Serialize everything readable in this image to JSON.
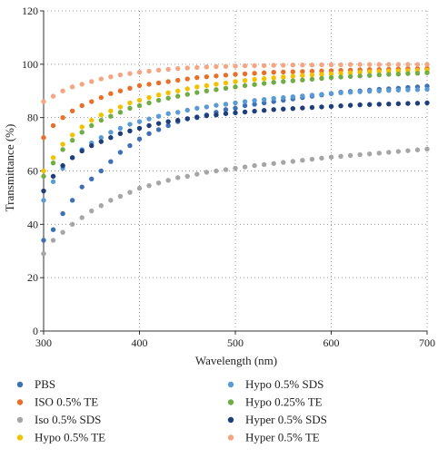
{
  "chart_data": {
    "type": "scatter",
    "title": "",
    "xlabel": "Wavelength (nm)",
    "ylabel": "Transmittance (%)",
    "xlim": [
      300,
      700
    ],
    "ylim": [
      0,
      120
    ],
    "xticks": [
      300,
      400,
      500,
      600,
      700
    ],
    "yticks": [
      0,
      20,
      40,
      60,
      80,
      100,
      120
    ],
    "grid": true,
    "legend_placement": "bottom",
    "x": [
      300,
      310,
      320,
      330,
      340,
      350,
      360,
      370,
      380,
      390,
      400,
      410,
      420,
      430,
      440,
      450,
      460,
      470,
      480,
      490,
      500,
      510,
      520,
      530,
      540,
      550,
      560,
      570,
      580,
      590,
      600,
      610,
      620,
      630,
      640,
      650,
      660,
      670,
      680,
      690,
      700
    ],
    "series": [
      {
        "name": "PBS",
        "color": "#3f6fb5",
        "values": [
          34.0,
          38.0,
          44.0,
          49.0,
          54.0,
          57.0,
          60.0,
          63.5,
          67.0,
          69.5,
          72.0,
          74.0,
          75.5,
          77.0,
          78.5,
          79.5,
          80.0,
          81.0,
          82.0,
          83.0,
          83.5,
          84.5,
          85.0,
          85.5,
          86.0,
          86.5,
          87.0,
          87.5,
          88.0,
          88.5,
          89.0,
          89.5,
          89.8,
          90.0,
          90.3,
          90.6,
          90.8,
          91.0,
          91.3,
          91.5,
          91.8
        ]
      },
      {
        "name": "ISO 0.5% TE",
        "color": "#e8702a",
        "values": [
          72.5,
          77.0,
          80.0,
          82.5,
          84.5,
          86.0,
          87.5,
          89.0,
          90.0,
          91.0,
          92.0,
          92.5,
          93.0,
          93.5,
          94.0,
          94.5,
          95.0,
          95.3,
          95.6,
          95.9,
          96.2,
          96.4,
          96.6,
          96.8,
          97.0,
          97.1,
          97.2,
          97.3,
          97.4,
          97.5,
          97.6,
          97.7,
          97.8,
          97.9,
          98.0,
          98.0,
          98.1,
          98.2,
          98.3,
          98.3,
          98.4
        ]
      },
      {
        "name": "Iso 0.5% SDS",
        "color": "#a6a6a6",
        "values": [
          29.0,
          34.0,
          37.0,
          40.0,
          42.5,
          45.0,
          47.0,
          49.0,
          50.5,
          52.0,
          53.5,
          54.5,
          55.5,
          56.5,
          57.5,
          58.0,
          58.8,
          59.5,
          60.0,
          60.5,
          61.0,
          61.5,
          62.0,
          62.4,
          62.8,
          63.2,
          63.6,
          64.0,
          64.4,
          64.8,
          65.2,
          65.5,
          65.8,
          66.1,
          66.4,
          66.7,
          67.0,
          67.3,
          67.6,
          67.9,
          68.2
        ]
      },
      {
        "name": "Hypo 0.5% TE",
        "color": "#f2c200",
        "values": [
          60.0,
          65.0,
          70.0,
          73.5,
          76.5,
          79.0,
          81.0,
          82.5,
          84.0,
          85.5,
          86.5,
          87.5,
          88.5,
          89.3,
          90.0,
          90.8,
          91.5,
          92.0,
          92.5,
          93.0,
          93.5,
          93.9,
          94.3,
          94.6,
          94.9,
          95.2,
          95.5,
          95.8,
          96.0,
          96.2,
          96.4,
          96.6,
          96.8,
          97.0,
          97.2,
          97.3,
          97.4,
          97.5,
          97.6,
          97.7,
          97.8
        ]
      },
      {
        "name": "Hypo 0.5% SDS",
        "color": "#5b9bd5",
        "values": [
          49.0,
          56.0,
          61.0,
          65.0,
          68.0,
          70.5,
          72.5,
          74.5,
          76.0,
          77.5,
          78.5,
          79.5,
          80.5,
          81.5,
          82.0,
          82.8,
          83.5,
          84.0,
          84.6,
          85.0,
          85.5,
          86.0,
          86.4,
          86.8,
          87.2,
          87.5,
          87.8,
          88.1,
          88.4,
          88.7,
          89.0,
          89.3,
          89.5,
          89.7,
          89.9,
          90.0,
          90.2,
          90.3,
          90.4,
          90.5,
          90.6
        ]
      },
      {
        "name": "Hypo 0.25% TE",
        "color": "#70ad47",
        "values": [
          58.0,
          63.0,
          68.0,
          71.5,
          74.5,
          77.0,
          79.0,
          80.5,
          82.0,
          83.5,
          84.5,
          85.5,
          86.5,
          87.3,
          88.0,
          88.7,
          89.4,
          90.0,
          90.5,
          91.0,
          91.5,
          92.0,
          92.4,
          92.8,
          93.2,
          93.5,
          93.8,
          94.1,
          94.4,
          94.7,
          95.0,
          95.2,
          95.4,
          95.6,
          95.8,
          96.0,
          96.2,
          96.3,
          96.5,
          96.6,
          96.8
        ]
      },
      {
        "name": "Hyper 0.5% SDS",
        "color": "#1f3f7a",
        "values": [
          52.5,
          58.0,
          62.0,
          65.0,
          67.5,
          69.5,
          71.0,
          72.5,
          74.0,
          75.0,
          76.0,
          77.0,
          77.8,
          78.5,
          79.0,
          79.6,
          80.2,
          80.7,
          81.0,
          81.5,
          81.8,
          82.1,
          82.4,
          82.7,
          83.0,
          83.2,
          83.4,
          83.6,
          83.8,
          84.0,
          84.2,
          84.4,
          84.6,
          84.8,
          84.9,
          85.0,
          85.1,
          85.2,
          85.3,
          85.4,
          85.5
        ]
      },
      {
        "name": "Hyper 0.5% TE",
        "color": "#f4a582",
        "values": [
          86.0,
          88.0,
          90.0,
          91.5,
          92.5,
          93.5,
          94.5,
          95.3,
          96.0,
          96.5,
          97.0,
          97.4,
          97.8,
          98.1,
          98.4,
          98.6,
          98.8,
          99.0,
          99.1,
          99.2,
          99.3,
          99.4,
          99.5,
          99.5,
          99.6,
          99.6,
          99.7,
          99.7,
          99.7,
          99.8,
          99.8,
          99.8,
          99.9,
          99.9,
          99.9,
          99.9,
          99.9,
          99.9,
          99.9,
          99.9,
          99.9
        ]
      }
    ],
    "legend": [
      {
        "name": "PBS",
        "color": "#3f6fb5"
      },
      {
        "name": "Hypo 0.5% SDS",
        "color": "#5b9bd5"
      },
      {
        "name": "ISO 0.5% TE",
        "color": "#e8702a"
      },
      {
        "name": "Hypo 0.25% TE",
        "color": "#70ad47"
      },
      {
        "name": "Iso 0.5% SDS",
        "color": "#a6a6a6"
      },
      {
        "name": "Hyper 0.5% SDS",
        "color": "#1f3f7a"
      },
      {
        "name": "Hypo 0.5% TE",
        "color": "#f2c200"
      },
      {
        "name": "Hyper 0.5% TE",
        "color": "#f4a582"
      }
    ]
  }
}
